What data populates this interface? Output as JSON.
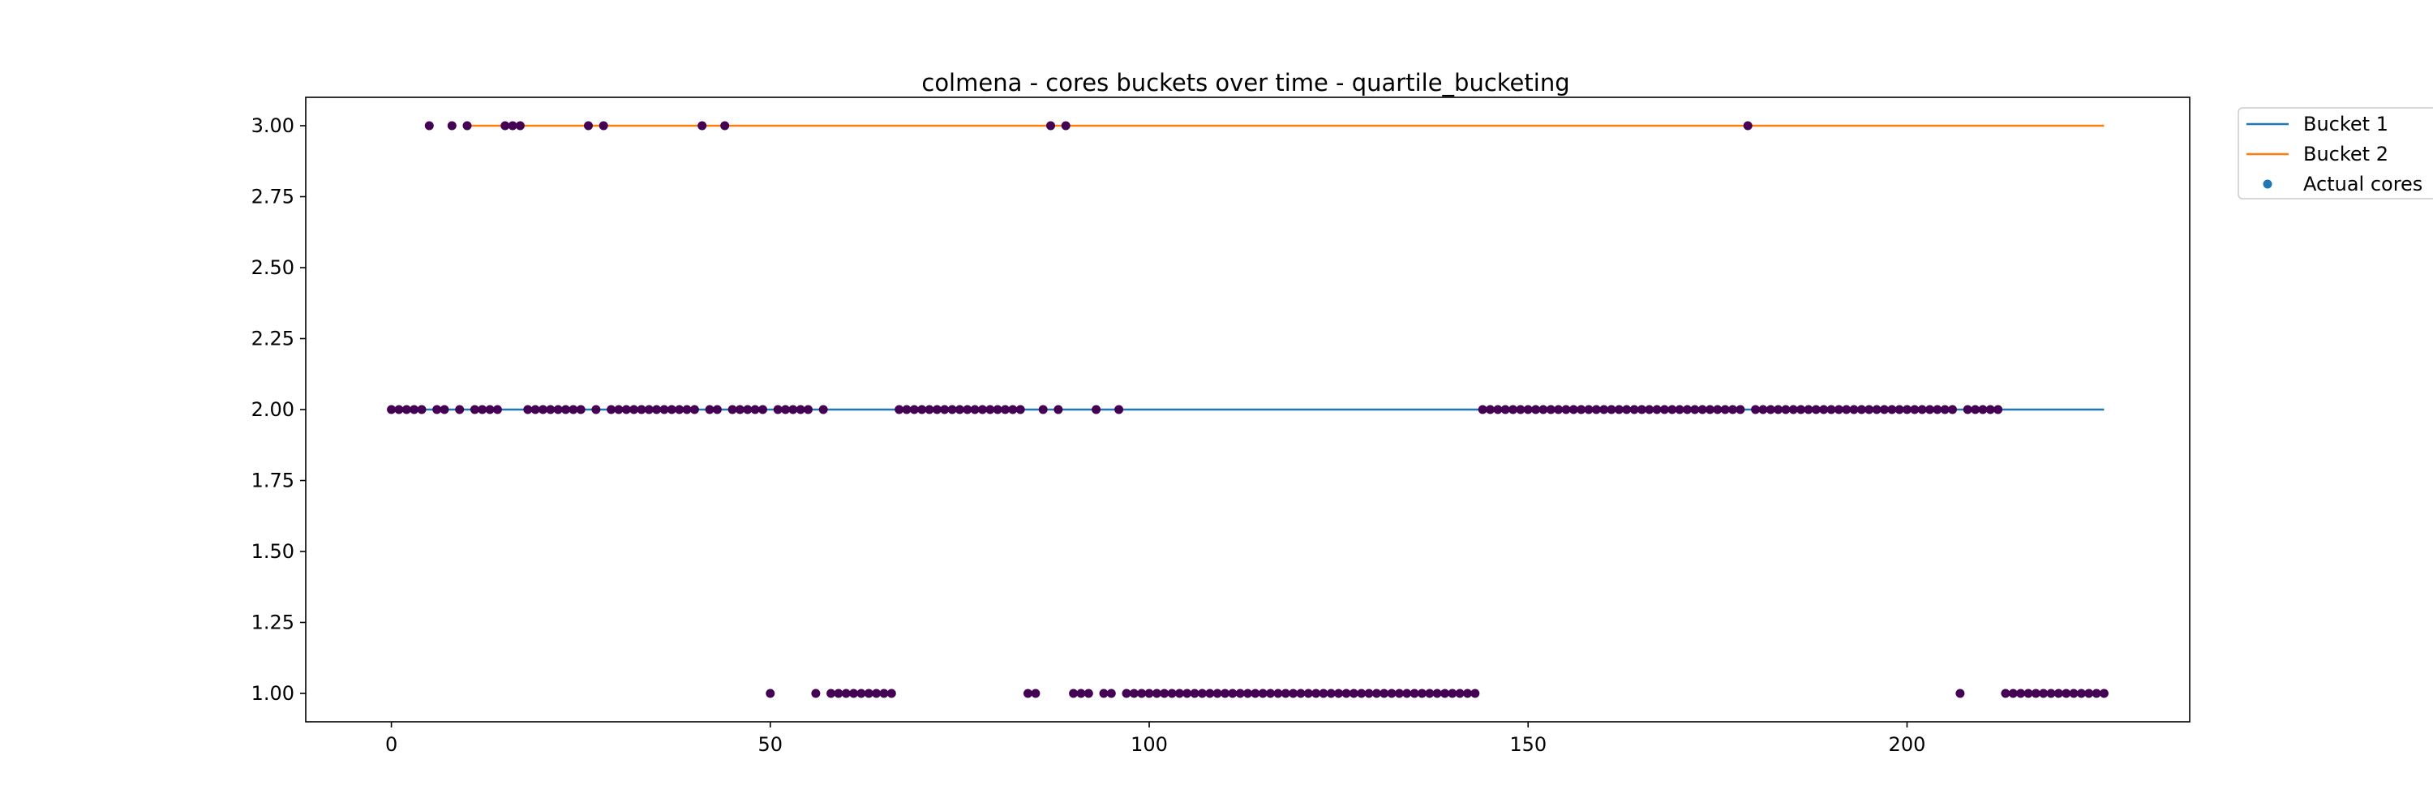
{
  "chart_data": {
    "type": "scatter",
    "title": "colmena - cores buckets over time - quartile_bucketing",
    "xlabel": "",
    "ylabel": "",
    "xlim": [
      -11.3,
      237.3
    ],
    "ylim": [
      0.9,
      3.1
    ],
    "x_ticks": [
      0,
      50,
      100,
      150,
      200
    ],
    "y_ticks": [
      1.0,
      1.25,
      1.5,
      1.75,
      2.0,
      2.25,
      2.5,
      2.75,
      3.0
    ],
    "x_tick_labels": [
      "0",
      "50",
      "100",
      "150",
      "200"
    ],
    "y_tick_labels": [
      "1.00",
      "1.25",
      "1.50",
      "1.75",
      "2.00",
      "2.25",
      "2.50",
      "2.75",
      "3.00"
    ],
    "grid": false,
    "legend_position": "outside-top-right",
    "series": [
      {
        "name": "Bucket 1",
        "kind": "line",
        "color": "#1f77b4",
        "x": [
          0,
          226
        ],
        "y": [
          2,
          2
        ]
      },
      {
        "name": "Bucket 2",
        "kind": "line",
        "color": "#ff7f0e",
        "x": [
          10,
          226
        ],
        "y": [
          3,
          3
        ]
      },
      {
        "name": "Actual cores",
        "kind": "scatter",
        "color": "#440154",
        "legend_color": "#1f77b4",
        "points": [
          [
            5,
            3
          ],
          [
            8,
            3
          ],
          [
            10,
            3
          ],
          [
            15,
            3
          ],
          [
            16,
            3
          ],
          [
            17,
            3
          ],
          [
            26,
            3
          ],
          [
            28,
            3
          ],
          [
            41,
            3
          ],
          [
            44,
            3
          ],
          [
            87,
            3
          ],
          [
            89,
            3
          ],
          [
            179,
            3
          ],
          [
            0,
            2
          ],
          [
            1,
            2
          ],
          [
            2,
            2
          ],
          [
            3,
            2
          ],
          [
            4,
            2
          ],
          [
            6,
            2
          ],
          [
            7,
            2
          ],
          [
            9,
            2
          ],
          [
            11,
            2
          ],
          [
            12,
            2
          ],
          [
            13,
            2
          ],
          [
            14,
            2
          ],
          [
            18,
            2
          ],
          [
            19,
            2
          ],
          [
            20,
            2
          ],
          [
            21,
            2
          ],
          [
            22,
            2
          ],
          [
            23,
            2
          ],
          [
            24,
            2
          ],
          [
            25,
            2
          ],
          [
            27,
            2
          ],
          [
            29,
            2
          ],
          [
            30,
            2
          ],
          [
            31,
            2
          ],
          [
            32,
            2
          ],
          [
            33,
            2
          ],
          [
            34,
            2
          ],
          [
            35,
            2
          ],
          [
            36,
            2
          ],
          [
            37,
            2
          ],
          [
            38,
            2
          ],
          [
            39,
            2
          ],
          [
            40,
            2
          ],
          [
            42,
            2
          ],
          [
            43,
            2
          ],
          [
            45,
            2
          ],
          [
            46,
            2
          ],
          [
            47,
            2
          ],
          [
            48,
            2
          ],
          [
            49,
            2
          ],
          [
            51,
            2
          ],
          [
            52,
            2
          ],
          [
            53,
            2
          ],
          [
            54,
            2
          ],
          [
            55,
            2
          ],
          [
            57,
            2
          ],
          [
            67,
            2
          ],
          [
            68,
            2
          ],
          [
            69,
            2
          ],
          [
            70,
            2
          ],
          [
            71,
            2
          ],
          [
            72,
            2
          ],
          [
            73,
            2
          ],
          [
            74,
            2
          ],
          [
            75,
            2
          ],
          [
            76,
            2
          ],
          [
            77,
            2
          ],
          [
            78,
            2
          ],
          [
            79,
            2
          ],
          [
            80,
            2
          ],
          [
            81,
            2
          ],
          [
            82,
            2
          ],
          [
            83,
            2
          ],
          [
            86,
            2
          ],
          [
            88,
            2
          ],
          [
            93,
            2
          ],
          [
            96,
            2
          ],
          [
            144,
            2
          ],
          [
            145,
            2
          ],
          [
            146,
            2
          ],
          [
            147,
            2
          ],
          [
            148,
            2
          ],
          [
            149,
            2
          ],
          [
            150,
            2
          ],
          [
            151,
            2
          ],
          [
            152,
            2
          ],
          [
            153,
            2
          ],
          [
            154,
            2
          ],
          [
            155,
            2
          ],
          [
            156,
            2
          ],
          [
            157,
            2
          ],
          [
            158,
            2
          ],
          [
            159,
            2
          ],
          [
            160,
            2
          ],
          [
            161,
            2
          ],
          [
            162,
            2
          ],
          [
            163,
            2
          ],
          [
            164,
            2
          ],
          [
            165,
            2
          ],
          [
            166,
            2
          ],
          [
            167,
            2
          ],
          [
            168,
            2
          ],
          [
            169,
            2
          ],
          [
            170,
            2
          ],
          [
            171,
            2
          ],
          [
            172,
            2
          ],
          [
            173,
            2
          ],
          [
            174,
            2
          ],
          [
            175,
            2
          ],
          [
            176,
            2
          ],
          [
            177,
            2
          ],
          [
            178,
            2
          ],
          [
            180,
            2
          ],
          [
            181,
            2
          ],
          [
            182,
            2
          ],
          [
            183,
            2
          ],
          [
            184,
            2
          ],
          [
            185,
            2
          ],
          [
            186,
            2
          ],
          [
            187,
            2
          ],
          [
            188,
            2
          ],
          [
            189,
            2
          ],
          [
            190,
            2
          ],
          [
            191,
            2
          ],
          [
            192,
            2
          ],
          [
            193,
            2
          ],
          [
            194,
            2
          ],
          [
            195,
            2
          ],
          [
            196,
            2
          ],
          [
            197,
            2
          ],
          [
            198,
            2
          ],
          [
            199,
            2
          ],
          [
            200,
            2
          ],
          [
            201,
            2
          ],
          [
            202,
            2
          ],
          [
            203,
            2
          ],
          [
            204,
            2
          ],
          [
            205,
            2
          ],
          [
            206,
            2
          ],
          [
            208,
            2
          ],
          [
            209,
            2
          ],
          [
            210,
            2
          ],
          [
            211,
            2
          ],
          [
            212,
            2
          ],
          [
            50,
            1
          ],
          [
            56,
            1
          ],
          [
            58,
            1
          ],
          [
            59,
            1
          ],
          [
            60,
            1
          ],
          [
            61,
            1
          ],
          [
            62,
            1
          ],
          [
            63,
            1
          ],
          [
            64,
            1
          ],
          [
            65,
            1
          ],
          [
            66,
            1
          ],
          [
            84,
            1
          ],
          [
            85,
            1
          ],
          [
            90,
            1
          ],
          [
            91,
            1
          ],
          [
            92,
            1
          ],
          [
            94,
            1
          ],
          [
            95,
            1
          ],
          [
            97,
            1
          ],
          [
            98,
            1
          ],
          [
            99,
            1
          ],
          [
            100,
            1
          ],
          [
            101,
            1
          ],
          [
            102,
            1
          ],
          [
            103,
            1
          ],
          [
            104,
            1
          ],
          [
            105,
            1
          ],
          [
            106,
            1
          ],
          [
            107,
            1
          ],
          [
            108,
            1
          ],
          [
            109,
            1
          ],
          [
            110,
            1
          ],
          [
            111,
            1
          ],
          [
            112,
            1
          ],
          [
            113,
            1
          ],
          [
            114,
            1
          ],
          [
            115,
            1
          ],
          [
            116,
            1
          ],
          [
            117,
            1
          ],
          [
            118,
            1
          ],
          [
            119,
            1
          ],
          [
            120,
            1
          ],
          [
            121,
            1
          ],
          [
            122,
            1
          ],
          [
            123,
            1
          ],
          [
            124,
            1
          ],
          [
            125,
            1
          ],
          [
            126,
            1
          ],
          [
            127,
            1
          ],
          [
            128,
            1
          ],
          [
            129,
            1
          ],
          [
            130,
            1
          ],
          [
            131,
            1
          ],
          [
            132,
            1
          ],
          [
            133,
            1
          ],
          [
            134,
            1
          ],
          [
            135,
            1
          ],
          [
            136,
            1
          ],
          [
            137,
            1
          ],
          [
            138,
            1
          ],
          [
            139,
            1
          ],
          [
            140,
            1
          ],
          [
            141,
            1
          ],
          [
            142,
            1
          ],
          [
            143,
            1
          ],
          [
            207,
            1
          ],
          [
            213,
            1
          ],
          [
            214,
            1
          ],
          [
            215,
            1
          ],
          [
            216,
            1
          ],
          [
            217,
            1
          ],
          [
            218,
            1
          ],
          [
            219,
            1
          ],
          [
            220,
            1
          ],
          [
            221,
            1
          ],
          [
            222,
            1
          ],
          [
            223,
            1
          ],
          [
            224,
            1
          ],
          [
            225,
            1
          ],
          [
            226,
            1
          ]
        ]
      }
    ]
  }
}
